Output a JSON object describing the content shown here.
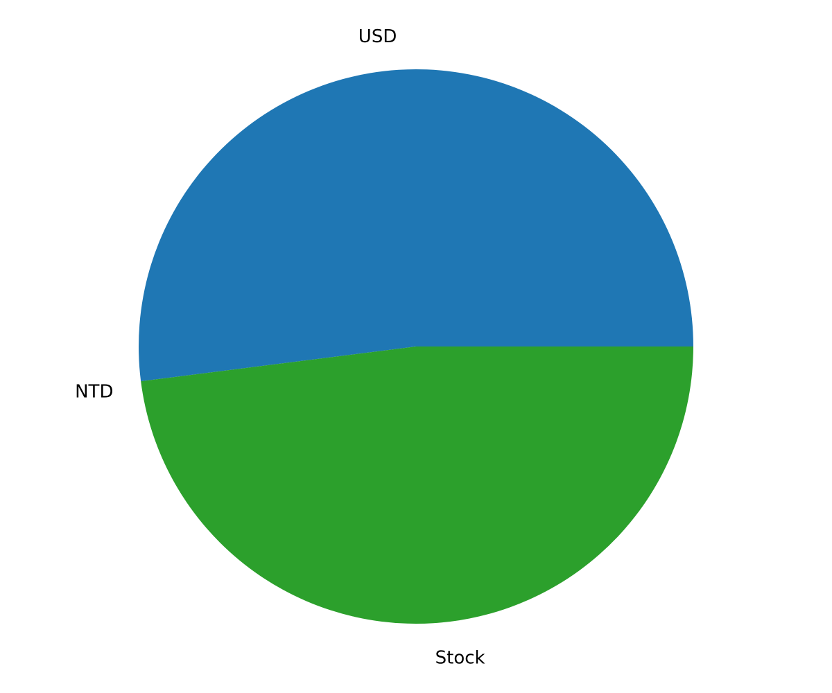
{
  "chart_data": {
    "type": "pie",
    "title": "",
    "start_angle_deg": 0,
    "direction": "counterclockwise",
    "slices": [
      {
        "label": "USD",
        "value": 52.0,
        "color": "#1f77b4"
      },
      {
        "label": "NTD",
        "value": 0.0,
        "color": "#ff7f0e"
      },
      {
        "label": "Stock",
        "value": 48.0,
        "color": "#2ca02c"
      }
    ],
    "legend": "none"
  }
}
